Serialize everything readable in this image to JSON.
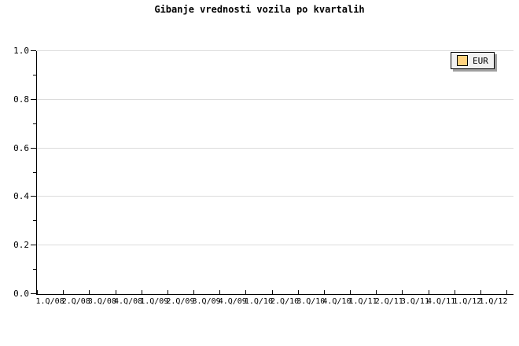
{
  "title": "Gibanje vrednosti vozila po kvartalih",
  "legend": {
    "label": "EUR",
    "swatch_color": "#ffd27f"
  },
  "colors": {
    "background": "#ffffff",
    "text": "#000000",
    "axis": "#000000",
    "gridline": "#dcdcdc",
    "legend_fill": "#f1f1f1",
    "legend_shadow": "#a0a0a0",
    "series_eur": "#ffd27f"
  },
  "chart_data": {
    "type": "line",
    "title": "Gibanje vrednosti vozila po kvartalih",
    "xlabel": "",
    "ylabel": "",
    "categories": [
      "1.Q/08",
      "2.Q/08",
      "3.Q/08",
      "4.Q/08",
      "1.Q/09",
      "2.Q/09",
      "3.Q/09",
      "4.Q/09",
      "1.Q/10",
      "2.Q/10",
      "3.Q/10",
      "4.Q/10",
      "1.Q/11",
      "2.Q/11",
      "3.Q/11",
      "4.Q/11",
      "1.Q/12",
      "1.Q/12"
    ],
    "series": [
      {
        "name": "EUR",
        "values": []
      }
    ],
    "plot_empty": true,
    "ylim": [
      0.0,
      1.0
    ],
    "y_major_ticks": [
      0.0,
      0.2,
      0.4,
      0.6,
      0.8,
      1.0
    ],
    "y_tick_labels": [
      "0.0",
      "0.2",
      "0.4",
      "0.6",
      "0.8",
      "1.0"
    ],
    "y_minor_step": 0.1,
    "grid": "horizontal-major-only",
    "legend_position": "top-right"
  }
}
